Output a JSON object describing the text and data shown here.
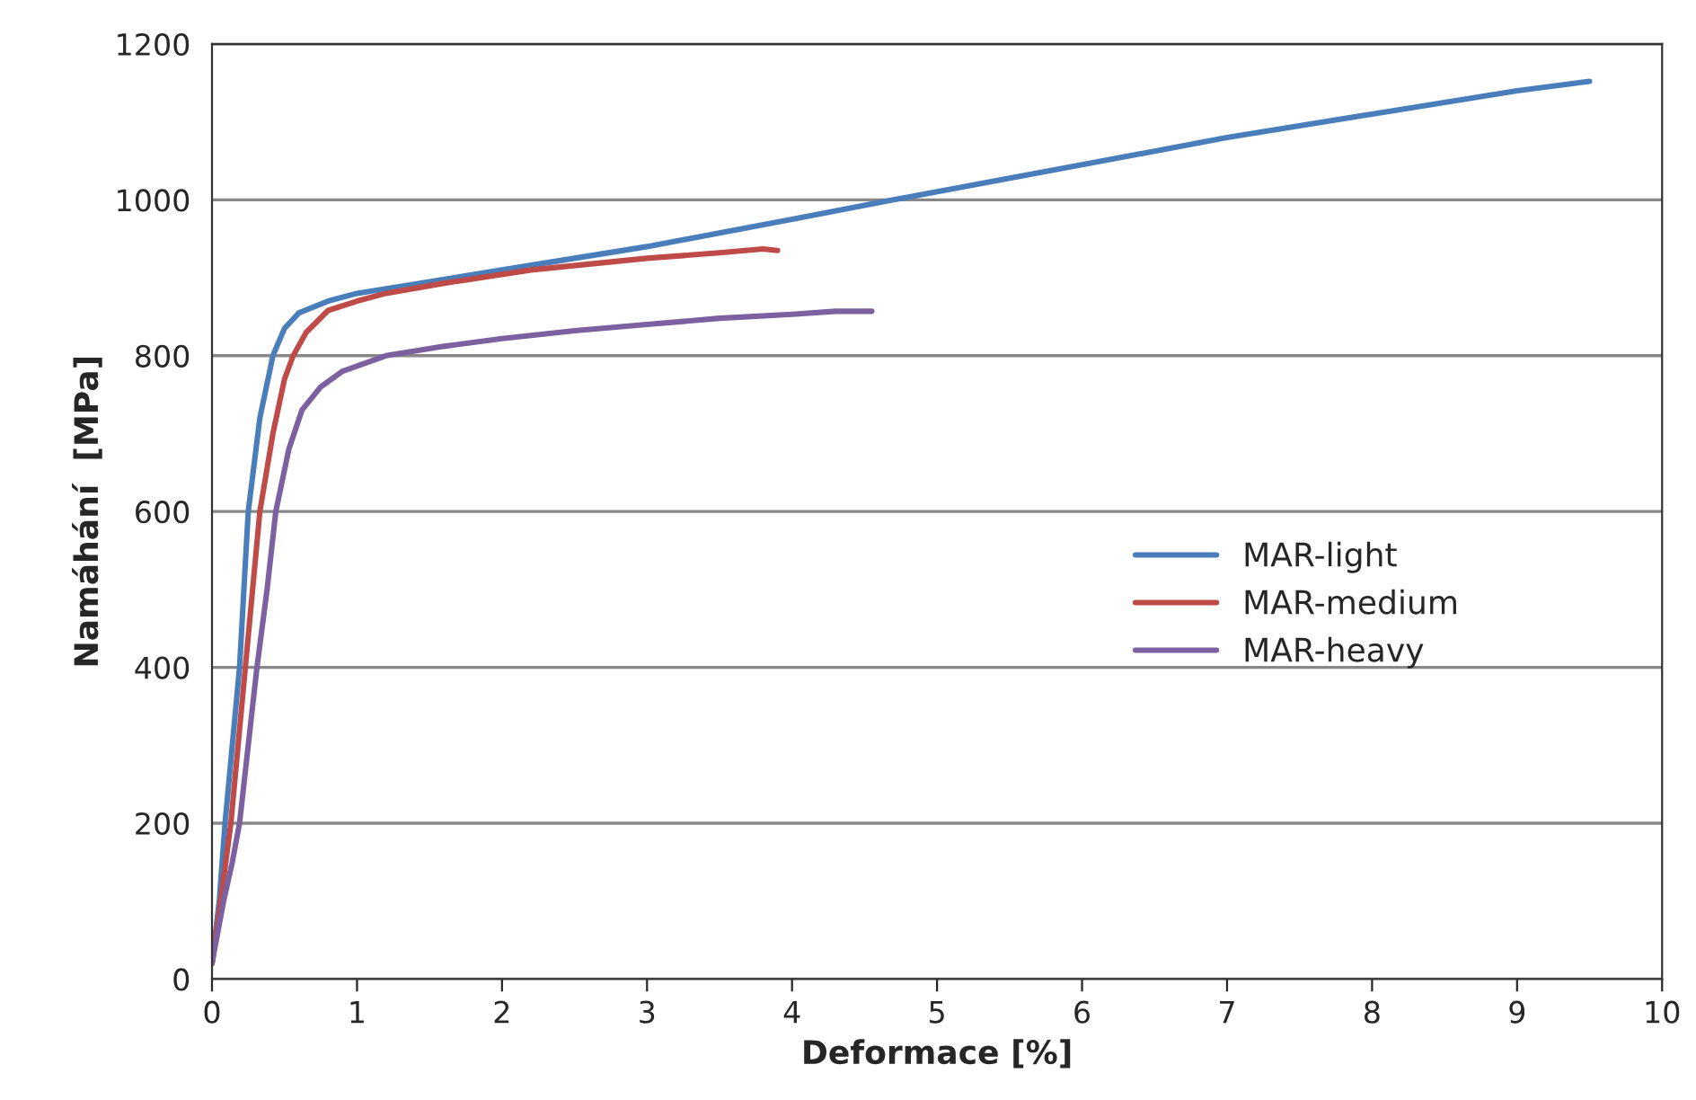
{
  "chart_data": {
    "type": "line",
    "xlabel": "Deformace [%]",
    "ylabel": "Namáhání  [MPa]",
    "xlim": [
      0,
      10
    ],
    "xticks": [
      0,
      1,
      2,
      3,
      4,
      5,
      6,
      7,
      8,
      9,
      10
    ],
    "ylim": [
      0,
      1200
    ],
    "yticks": [
      0,
      200,
      400,
      600,
      800,
      1000,
      1200
    ],
    "grid": "y",
    "legend": "right",
    "marker": "none",
    "line_style": "solid",
    "series": [
      {
        "name": "MAR-light",
        "color": "#4a7ebb",
        "x": [
          0,
          0.05,
          0.09,
          0.14,
          0.19,
          0.25,
          0.33,
          0.42,
          0.5,
          0.6,
          0.8,
          1.0,
          1.5,
          2.0,
          3.0,
          4.0,
          4.7,
          6.0,
          7.0,
          8.0,
          9.0,
          9.5
        ],
        "values": [
          20,
          100,
          200,
          300,
          400,
          600,
          720,
          800,
          835,
          855,
          870,
          880,
          895,
          910,
          940,
          975,
          1000,
          1045,
          1080,
          1110,
          1140,
          1152
        ]
      },
      {
        "name": "MAR-medium",
        "color": "#be4b48",
        "x": [
          0,
          0.06,
          0.13,
          0.18,
          0.23,
          0.33,
          0.42,
          0.5,
          0.56,
          0.65,
          0.8,
          1.0,
          1.2,
          1.6,
          2.2,
          3.0,
          3.5,
          3.8,
          3.9
        ],
        "values": [
          20,
          100,
          200,
          300,
          400,
          600,
          700,
          770,
          800,
          830,
          858,
          870,
          880,
          893,
          910,
          925,
          932,
          937,
          935
        ]
      },
      {
        "name": "MAR-heavy",
        "color": "#7d60a0",
        "x": [
          0,
          0.08,
          0.14,
          0.19,
          0.25,
          0.31,
          0.38,
          0.44,
          0.53,
          0.62,
          0.75,
          0.9,
          1.2,
          1.6,
          2.0,
          2.5,
          3.0,
          3.5,
          4.0,
          4.3,
          4.55
        ],
        "values": [
          20,
          100,
          150,
          200,
          300,
          400,
          500,
          600,
          680,
          730,
          760,
          780,
          800,
          812,
          822,
          832,
          840,
          848,
          853,
          857,
          857
        ]
      }
    ]
  }
}
